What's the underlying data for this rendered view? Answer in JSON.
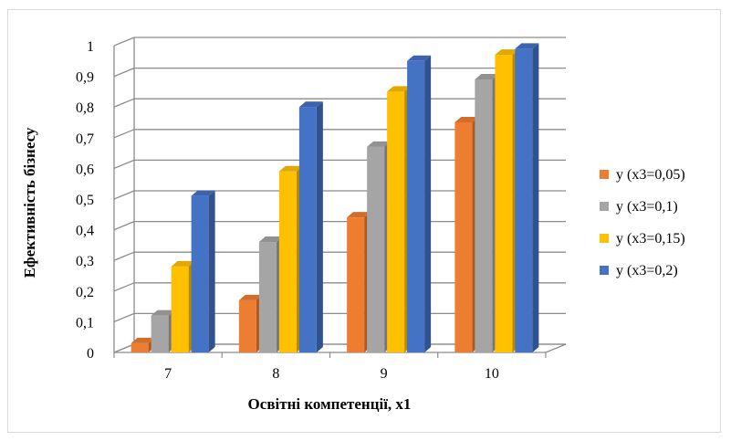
{
  "chart_data": {
    "type": "bar",
    "title": "",
    "xlabel": "Освітні компетенції, x1",
    "ylabel": "Ефективність бізнесу",
    "categories": [
      "7",
      "8",
      "9",
      "10"
    ],
    "ylim": [
      0,
      1
    ],
    "yticks": [
      "0",
      "0,1",
      "0,2",
      "0,3",
      "0,4",
      "0,5",
      "0,6",
      "0,7",
      "0,8",
      "0,9",
      "1"
    ],
    "grid": true,
    "legend_position": "right",
    "series": [
      {
        "name": "y (x3=0,05)",
        "color": "#ED7D31",
        "values": [
          0.03,
          0.17,
          0.44,
          0.75
        ]
      },
      {
        "name": "y (x3=0,1)",
        "color": "#A5A5A5",
        "values": [
          0.12,
          0.36,
          0.67,
          0.89
        ]
      },
      {
        "name": "y (x3=0,15)",
        "color": "#FFC000",
        "values": [
          0.28,
          0.59,
          0.85,
          0.97
        ]
      },
      {
        "name": "y  (x3=0,2)",
        "color": "#4472C4",
        "values": [
          0.51,
          0.8,
          0.95,
          0.99
        ]
      }
    ]
  }
}
